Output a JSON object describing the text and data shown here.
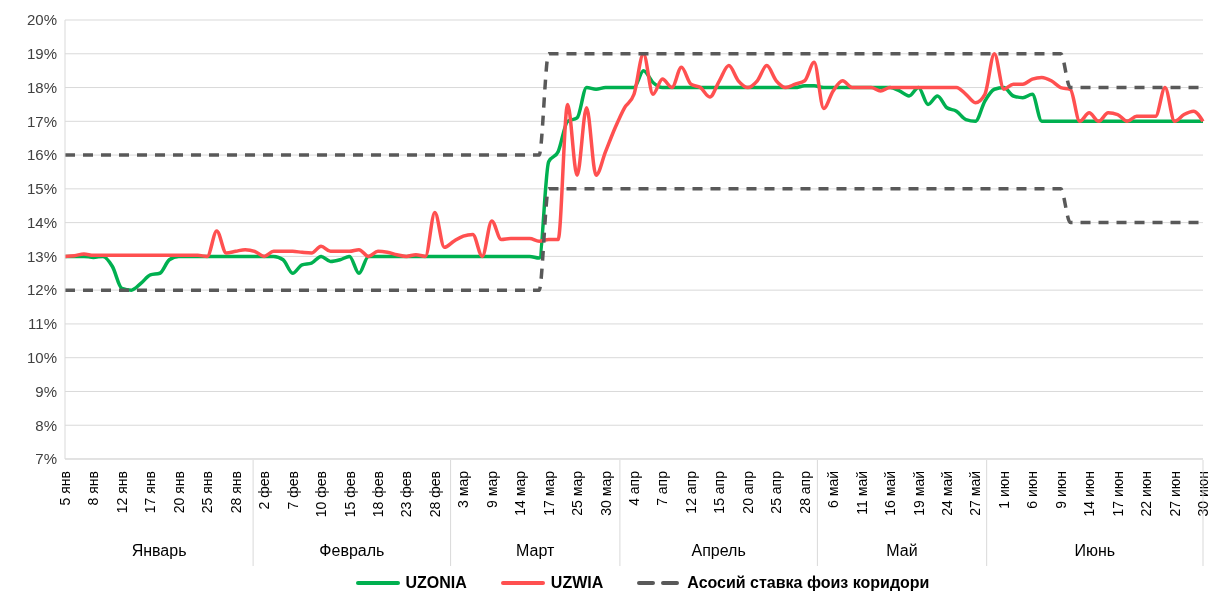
{
  "chart_data": {
    "type": "line",
    "categories": [
      "5 янв",
      null,
      null,
      "8 янв",
      null,
      null,
      "12 янв",
      null,
      null,
      "17 янв",
      null,
      null,
      "20 янв",
      null,
      null,
      "25 янв",
      null,
      null,
      "28 янв",
      null,
      null,
      "2 фев",
      null,
      null,
      "7 фев",
      null,
      null,
      "10 фев",
      null,
      null,
      "15 фев",
      null,
      null,
      "18 фев",
      null,
      null,
      "23 фев",
      null,
      null,
      "28 фев",
      null,
      null,
      "3 мар",
      null,
      null,
      "9 мар",
      null,
      null,
      "14 мар",
      null,
      null,
      "17 мар",
      null,
      null,
      "25 мар",
      null,
      null,
      "30 мар",
      null,
      null,
      "4 апр",
      null,
      null,
      "7 апр",
      null,
      null,
      "12 апр",
      null,
      null,
      "15 апр",
      null,
      null,
      "20 апр",
      null,
      null,
      "25 апр",
      null,
      null,
      "28 апр",
      null,
      null,
      "6 май",
      null,
      null,
      "11 май",
      null,
      null,
      "16 май",
      null,
      null,
      "19 май",
      null,
      null,
      "24 май",
      null,
      null,
      "27 май",
      null,
      null,
      "1 июн",
      null,
      null,
      "6 июн",
      null,
      null,
      "9 июн",
      null,
      null,
      "14 июн",
      null,
      null,
      "17 июн",
      null,
      null,
      "22 июн",
      null,
      null,
      "27 июн",
      null,
      null,
      "30 июн"
    ],
    "series": [
      {
        "name": "UZONIA",
        "color": "#00b050",
        "values": [
          13,
          13,
          13,
          12.97,
          13,
          12.7,
          12.05,
          12,
          12.2,
          12.45,
          12.5,
          12.9,
          13,
          13,
          13,
          13,
          13,
          13,
          13,
          13,
          13,
          13,
          13,
          12.9,
          12.5,
          12.75,
          12.8,
          13,
          12.85,
          12.9,
          13,
          12.5,
          13,
          13,
          13,
          13,
          13,
          13,
          13,
          13,
          13,
          13,
          13,
          13,
          13,
          13,
          13,
          13,
          13,
          13,
          12.95,
          15.8,
          16.1,
          17,
          17.1,
          18,
          17.95,
          18,
          18,
          18,
          18,
          18.5,
          18.15,
          18,
          18,
          18,
          18,
          18,
          18,
          18,
          18,
          18,
          18,
          18,
          18,
          18,
          18,
          18,
          18.05,
          18.05,
          18,
          18,
          18,
          18,
          18,
          18,
          18,
          18,
          17.9,
          17.75,
          18,
          17.5,
          17.75,
          17.4,
          17.3,
          17.05,
          17,
          17.6,
          17.95,
          18,
          17.75,
          17.7,
          17.8,
          17,
          17,
          17,
          17,
          17,
          17,
          17,
          17,
          17,
          17,
          17,
          17,
          17,
          17,
          17,
          17,
          17,
          17
        ]
      },
      {
        "name": "UZWIA",
        "color": "#ff5050",
        "values": [
          13,
          13.02,
          13.07,
          13.03,
          13.03,
          13.03,
          13.03,
          13.03,
          13.03,
          13.03,
          13.03,
          13.03,
          13.03,
          13.03,
          13.03,
          13,
          13.75,
          13.1,
          13.15,
          13.2,
          13.15,
          13,
          13.15,
          13.15,
          13.15,
          13.12,
          13.1,
          13.3,
          13.15,
          13.15,
          13.15,
          13.2,
          13,
          13.15,
          13.12,
          13.05,
          13,
          13.05,
          13,
          14.3,
          13.27,
          13.45,
          13.6,
          13.65,
          13,
          14.05,
          13.5,
          13.53,
          13.53,
          13.53,
          13.45,
          13.5,
          13.5,
          17.5,
          15.4,
          17.4,
          15.4,
          16.1,
          16.8,
          17.4,
          17.8,
          19,
          17.8,
          18.25,
          18,
          18.6,
          18.1,
          18,
          17.72,
          18.2,
          18.65,
          18.2,
          18,
          18.2,
          18.65,
          18.2,
          18,
          18.1,
          18.2,
          18.75,
          17.38,
          17.9,
          18.2,
          18,
          18,
          18,
          17.9,
          18,
          18,
          18,
          18,
          18,
          18,
          18,
          18,
          17.8,
          17.55,
          17.8,
          19,
          17.95,
          18.1,
          18.1,
          18.25,
          18.3,
          18.2,
          18,
          17.95,
          17,
          17.25,
          17,
          17.25,
          17.2,
          17,
          17.15,
          17.15,
          17.15,
          18,
          17,
          17.2,
          17.3,
          17
        ]
      },
      {
        "name": "Асосий ставка фоиз коридори",
        "color": "#595959",
        "line_style": "dashed",
        "values": [
          16,
          16,
          16,
          16,
          16,
          16,
          16,
          16,
          16,
          16,
          16,
          16,
          16,
          16,
          16,
          16,
          16,
          16,
          16,
          16,
          16,
          16,
          16,
          16,
          16,
          16,
          16,
          16,
          16,
          16,
          16,
          16,
          16,
          16,
          16,
          16,
          16,
          16,
          16,
          16,
          16,
          16,
          16,
          16,
          16,
          16,
          16,
          16,
          16,
          16,
          16,
          19,
          19,
          19,
          19,
          19,
          19,
          19,
          19,
          19,
          19,
          19,
          19,
          19,
          19,
          19,
          19,
          19,
          19,
          19,
          19,
          19,
          19,
          19,
          19,
          19,
          19,
          19,
          19,
          19,
          19,
          19,
          19,
          19,
          19,
          19,
          19,
          19,
          19,
          19,
          19,
          19,
          19,
          19,
          19,
          19,
          19,
          19,
          19,
          19,
          19,
          19,
          19,
          19,
          19,
          19,
          18,
          18,
          18,
          18,
          18,
          18,
          18,
          18,
          18,
          18,
          18,
          18,
          18,
          18,
          18
        ]
      },
      {
        "color": "#595959",
        "line_style": "dashed",
        "values": [
          12,
          12,
          12,
          12,
          12,
          12,
          12,
          12,
          12,
          12,
          12,
          12,
          12,
          12,
          12,
          12,
          12,
          12,
          12,
          12,
          12,
          12,
          12,
          12,
          12,
          12,
          12,
          12,
          12,
          12,
          12,
          12,
          12,
          12,
          12,
          12,
          12,
          12,
          12,
          12,
          12,
          12,
          12,
          12,
          12,
          12,
          12,
          12,
          12,
          12,
          12,
          15,
          15,
          15,
          15,
          15,
          15,
          15,
          15,
          15,
          15,
          15,
          15,
          15,
          15,
          15,
          15,
          15,
          15,
          15,
          15,
          15,
          15,
          15,
          15,
          15,
          15,
          15,
          15,
          15,
          15,
          15,
          15,
          15,
          15,
          15,
          15,
          15,
          15,
          15,
          15,
          15,
          15,
          15,
          15,
          15,
          15,
          15,
          15,
          15,
          15,
          15,
          15,
          15,
          15,
          15,
          14,
          14,
          14,
          14,
          14,
          14,
          14,
          14,
          14,
          14,
          14,
          14,
          14,
          14,
          14
        ]
      }
    ],
    "ylim": [
      7,
      20
    ],
    "yticks": [
      {
        "value": 7,
        "label": "7%"
      },
      {
        "value": 8,
        "label": "8%"
      },
      {
        "value": 9,
        "label": "9%"
      },
      {
        "value": 10,
        "label": "10%"
      },
      {
        "value": 11,
        "label": "11%"
      },
      {
        "value": 12,
        "label": "12%"
      },
      {
        "value": 13,
        "label": "13%"
      },
      {
        "value": 14,
        "label": "14%"
      },
      {
        "value": 15,
        "label": "15%"
      },
      {
        "value": 16,
        "label": "16%"
      },
      {
        "value": 17,
        "label": "17%"
      },
      {
        "value": 18,
        "label": "18%"
      },
      {
        "value": 19,
        "label": "19%"
      },
      {
        "value": 20,
        "label": "20%"
      }
    ],
    "grid": "y",
    "legend": "bottom",
    "marker": "none",
    "annotations": [
      "Январь",
      "Февраль",
      "Март",
      "Апрель",
      "Май",
      "Июнь"
    ]
  }
}
